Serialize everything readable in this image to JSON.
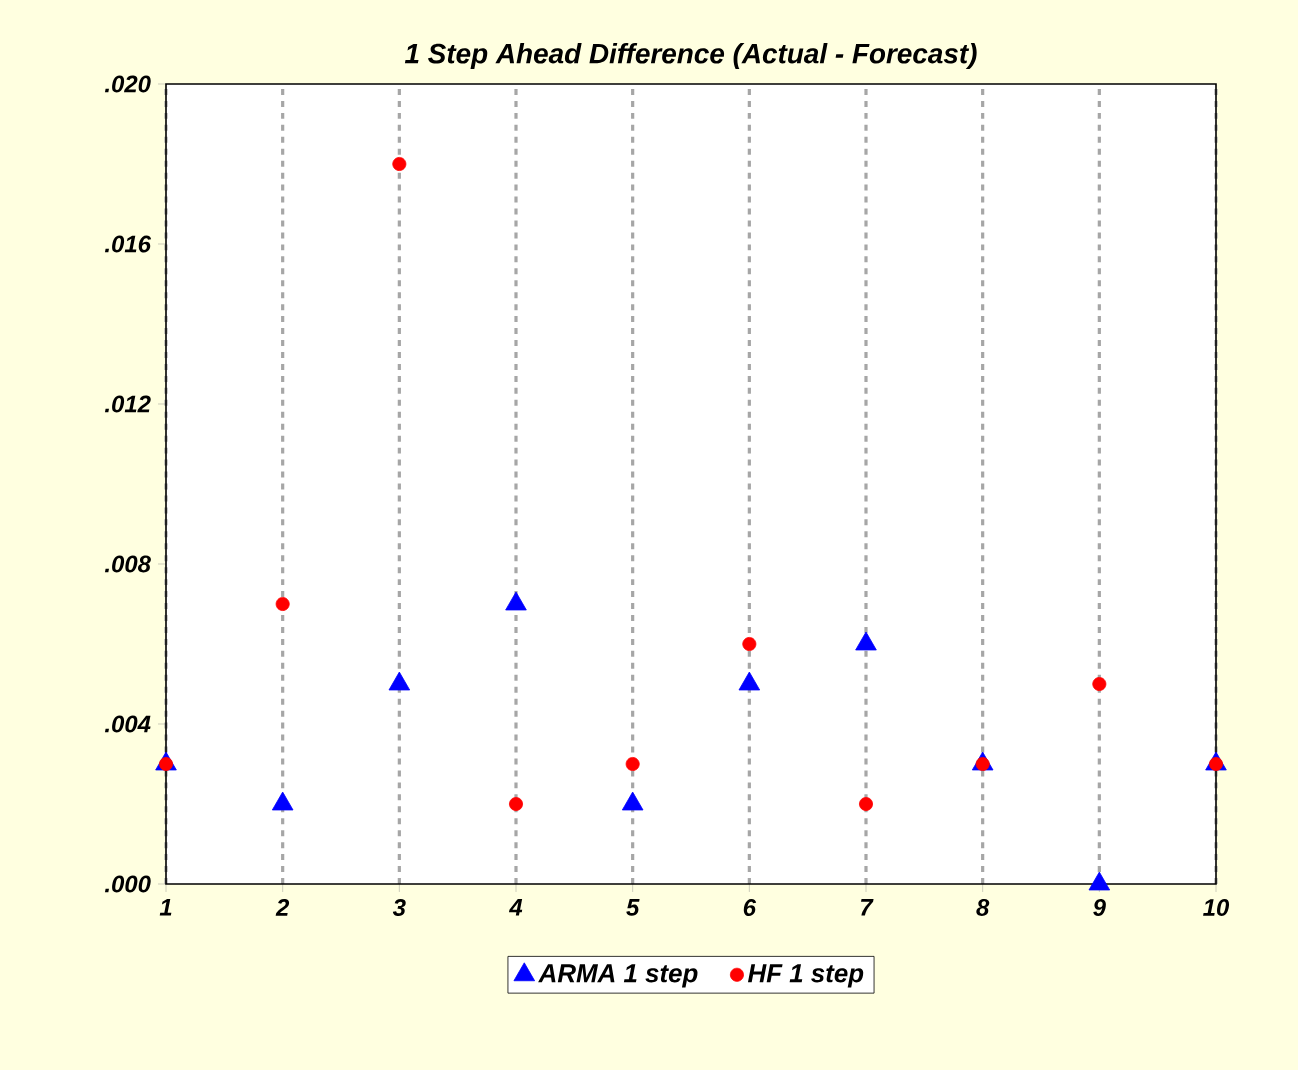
{
  "chart_data": {
    "type": "scatter",
    "title": "1 Step Ahead Difference (Actual - Forecast)",
    "x": [
      1,
      2,
      3,
      4,
      5,
      6,
      7,
      8,
      9,
      10
    ],
    "series": [
      {
        "name": "ARMA 1 step",
        "color": "#0000ff",
        "marker": "triangle",
        "values": [
          0.003,
          0.002,
          0.005,
          0.007,
          0.002,
          0.005,
          0.006,
          0.003,
          0.0,
          0.003
        ]
      },
      {
        "name": "HF 1 step",
        "color": "#ff0000",
        "marker": "circle",
        "values": [
          0.003,
          0.007,
          0.018,
          0.002,
          0.003,
          0.006,
          0.002,
          0.003,
          0.005,
          0.003
        ]
      }
    ],
    "xlim": [
      1,
      10
    ],
    "xticks": [
      1,
      2,
      3,
      4,
      5,
      6,
      7,
      8,
      9,
      10
    ],
    "ylim": [
      0,
      0.02
    ],
    "yticks": [
      {
        "value": 0,
        "label": ".000"
      },
      {
        "value": 0.004,
        "label": ".004"
      },
      {
        "value": 0.008,
        "label": ".008"
      },
      {
        "value": 0.012,
        "label": ".012"
      },
      {
        "value": 0.016,
        "label": ".016"
      },
      {
        "value": 0.02,
        "label": ".020"
      }
    ],
    "grid": "x",
    "legend": "bottom"
  }
}
